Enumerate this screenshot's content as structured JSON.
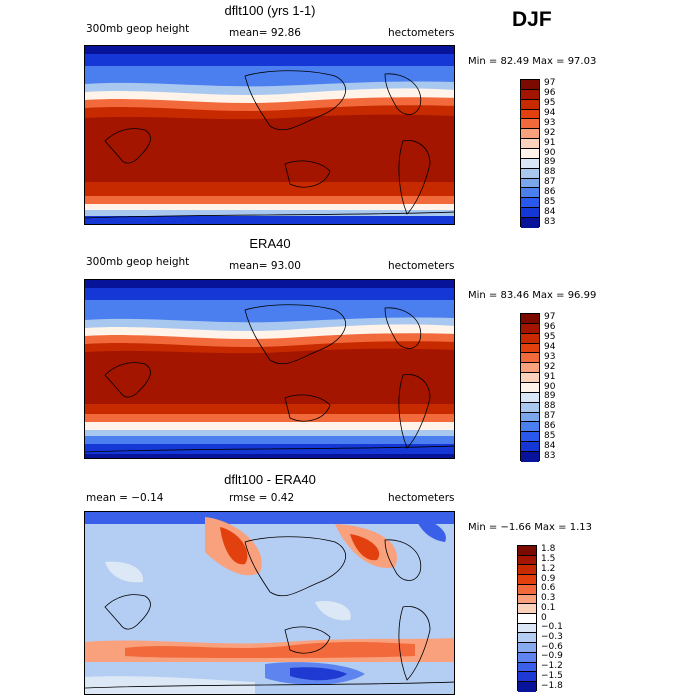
{
  "season": "DJF",
  "panels": [
    {
      "id": "model",
      "title": "dflt100 (yrs 1-1)",
      "left_label": "300mb geop height",
      "center_label": "mean=  92.86",
      "right_label": "hectometers",
      "minmax": "Min =  82.49 Max =  97.03",
      "color_levels": [
        "97",
        "96",
        "95",
        "94",
        "93",
        "92",
        "91",
        "90",
        "89",
        "88",
        "87",
        "86",
        "85",
        "84",
        "83"
      ]
    },
    {
      "id": "obs",
      "title": "ERA40",
      "left_label": "300mb geop height",
      "center_label": "mean=  93.00",
      "right_label": "hectometers",
      "minmax": "Min =  83.46 Max =  96.99",
      "color_levels": [
        "97",
        "96",
        "95",
        "94",
        "93",
        "92",
        "91",
        "90",
        "89",
        "88",
        "87",
        "86",
        "85",
        "84",
        "83"
      ]
    },
    {
      "id": "diff",
      "title": "dflt100 - ERA40",
      "left_label": "mean =  −0.14",
      "center_label": "rmse =   0.42",
      "right_label": "hectometers",
      "minmax": "Min =  −1.66 Max =   1.13",
      "color_levels": [
        "1.8",
        "1.5",
        "1.2",
        "0.9",
        "0.6",
        "0.3",
        "0.1",
        "0",
        "−0.1",
        "−0.3",
        "−0.6",
        "−0.9",
        "−1.2",
        "−1.5",
        "−1.8"
      ]
    }
  ],
  "colors": {
    "abs_scale": [
      "#7b0a00",
      "#a41500",
      "#c82a00",
      "#e2400f",
      "#f26a3c",
      "#f9a07c",
      "#fbd3bd",
      "#fff3ea",
      "#d9e6f7",
      "#a9c8f0",
      "#7aa6ec",
      "#4b7ff0",
      "#2a58ea",
      "#1437d6",
      "#07149a"
    ],
    "diff_scale": [
      "#7b0a00",
      "#a41500",
      "#c82a00",
      "#e2400f",
      "#f26a3c",
      "#f9a07c",
      "#fbd3bd",
      "#ffffff",
      "#dde8f7",
      "#b4cdf2",
      "#88aaee",
      "#5d84ef",
      "#3a5fe9",
      "#1e3ad2",
      "#07149a"
    ]
  }
}
